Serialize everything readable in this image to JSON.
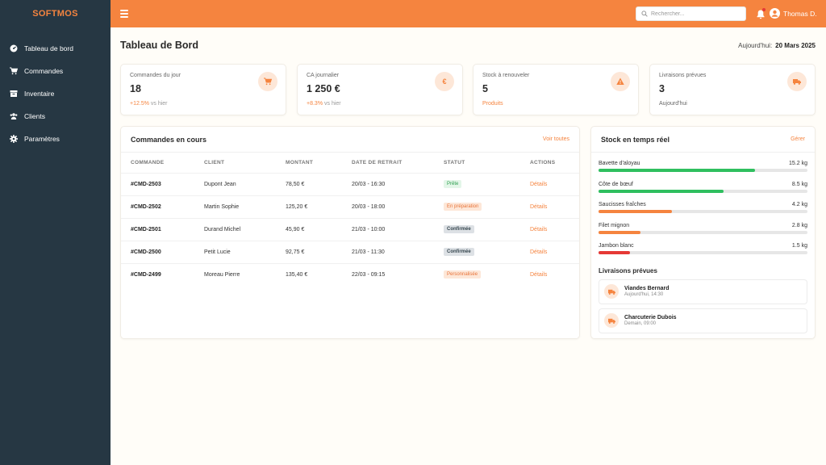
{
  "brand": "SOFTMOS",
  "sidebar": {
    "items": [
      {
        "label": "Tableau de bord",
        "icon": "dashboard-icon"
      },
      {
        "label": "Commandes",
        "icon": "cart-icon"
      },
      {
        "label": "Inventaire",
        "icon": "box-icon"
      },
      {
        "label": "Clients",
        "icon": "users-icon"
      },
      {
        "label": "Paramètres",
        "icon": "gear-icon"
      }
    ]
  },
  "topbar": {
    "search_placeholder": "Rechercher...",
    "user_name": "Thomas D."
  },
  "header": {
    "title": "Tableau de Bord",
    "date_label": "Aujourd'hui:",
    "date_value": "20 Mars 2025"
  },
  "stats": [
    {
      "label": "Commandes du jour",
      "value": "18",
      "delta": "+12.5%",
      "delta_suffix": "vs hier",
      "icon": "cart-icon"
    },
    {
      "label": "CA journalier",
      "value": "1 250 €",
      "delta": "+8.3%",
      "delta_suffix": "vs hier",
      "icon": "euro-icon"
    },
    {
      "label": "Stock à renouveler",
      "value": "5",
      "sub": "Produits",
      "icon": "warning-icon"
    },
    {
      "label": "Livraisons prévues",
      "value": "3",
      "sub": "Aujourd'hui",
      "icon": "truck-icon"
    }
  ],
  "orders": {
    "title": "Commandes en cours",
    "link": "Voir toutes",
    "columns": [
      "COMMANDE",
      "CLIENT",
      "MONTANT",
      "DATE DE RETRAIT",
      "STATUT",
      "ACTIONS"
    ],
    "rows": [
      {
        "id": "#CMD-2503",
        "client": "Dupont Jean",
        "amount": "78,50 €",
        "date": "20/03 - 16:30",
        "status": "Prête",
        "status_type": "prete",
        "action": "Détails"
      },
      {
        "id": "#CMD-2502",
        "client": "Martin Sophie",
        "amount": "125,20 €",
        "date": "20/03 - 18:00",
        "status": "En préparation",
        "status_type": "prep",
        "action": "Détails"
      },
      {
        "id": "#CMD-2501",
        "client": "Durand Michel",
        "amount": "45,90 €",
        "date": "21/03 - 10:00",
        "status": "Confirmée",
        "status_type": "conf",
        "action": "Détails"
      },
      {
        "id": "#CMD-2500",
        "client": "Petit Lucie",
        "amount": "92,75 €",
        "date": "21/03 - 11:30",
        "status": "Confirmée",
        "status_type": "conf",
        "action": "Détails"
      },
      {
        "id": "#CMD-2499",
        "client": "Moreau Pierre",
        "amount": "135,40 €",
        "date": "22/03 - 09:15",
        "status": "Personnalisée",
        "status_type": "perso",
        "action": "Détails"
      }
    ]
  },
  "stock": {
    "title": "Stock en temps réel",
    "link": "Gérer",
    "items": [
      {
        "name": "Bavette d'aloyau",
        "qty": "15.2 kg",
        "level": 0.75,
        "color": "#2fbf5f"
      },
      {
        "name": "Côte de bœuf",
        "qty": "8.5 kg",
        "level": 0.6,
        "color": "#2fbf5f"
      },
      {
        "name": "Saucisses fraîches",
        "qty": "4.2 kg",
        "level": 0.35,
        "color": "#f5843f"
      },
      {
        "name": "Filet mignon",
        "qty": "2.8 kg",
        "level": 0.2,
        "color": "#f5843f"
      },
      {
        "name": "Jambon blanc",
        "qty": "1.5 kg",
        "level": 0.15,
        "color": "#e53935"
      }
    ],
    "deliveries_title": "Livraisons prévues",
    "deliveries": [
      {
        "name": "Viandes Bernard",
        "time": "Aujourd'hui, 14:30"
      },
      {
        "name": "Charcuterie Dubois",
        "time": "Demain, 09:00"
      }
    ]
  }
}
